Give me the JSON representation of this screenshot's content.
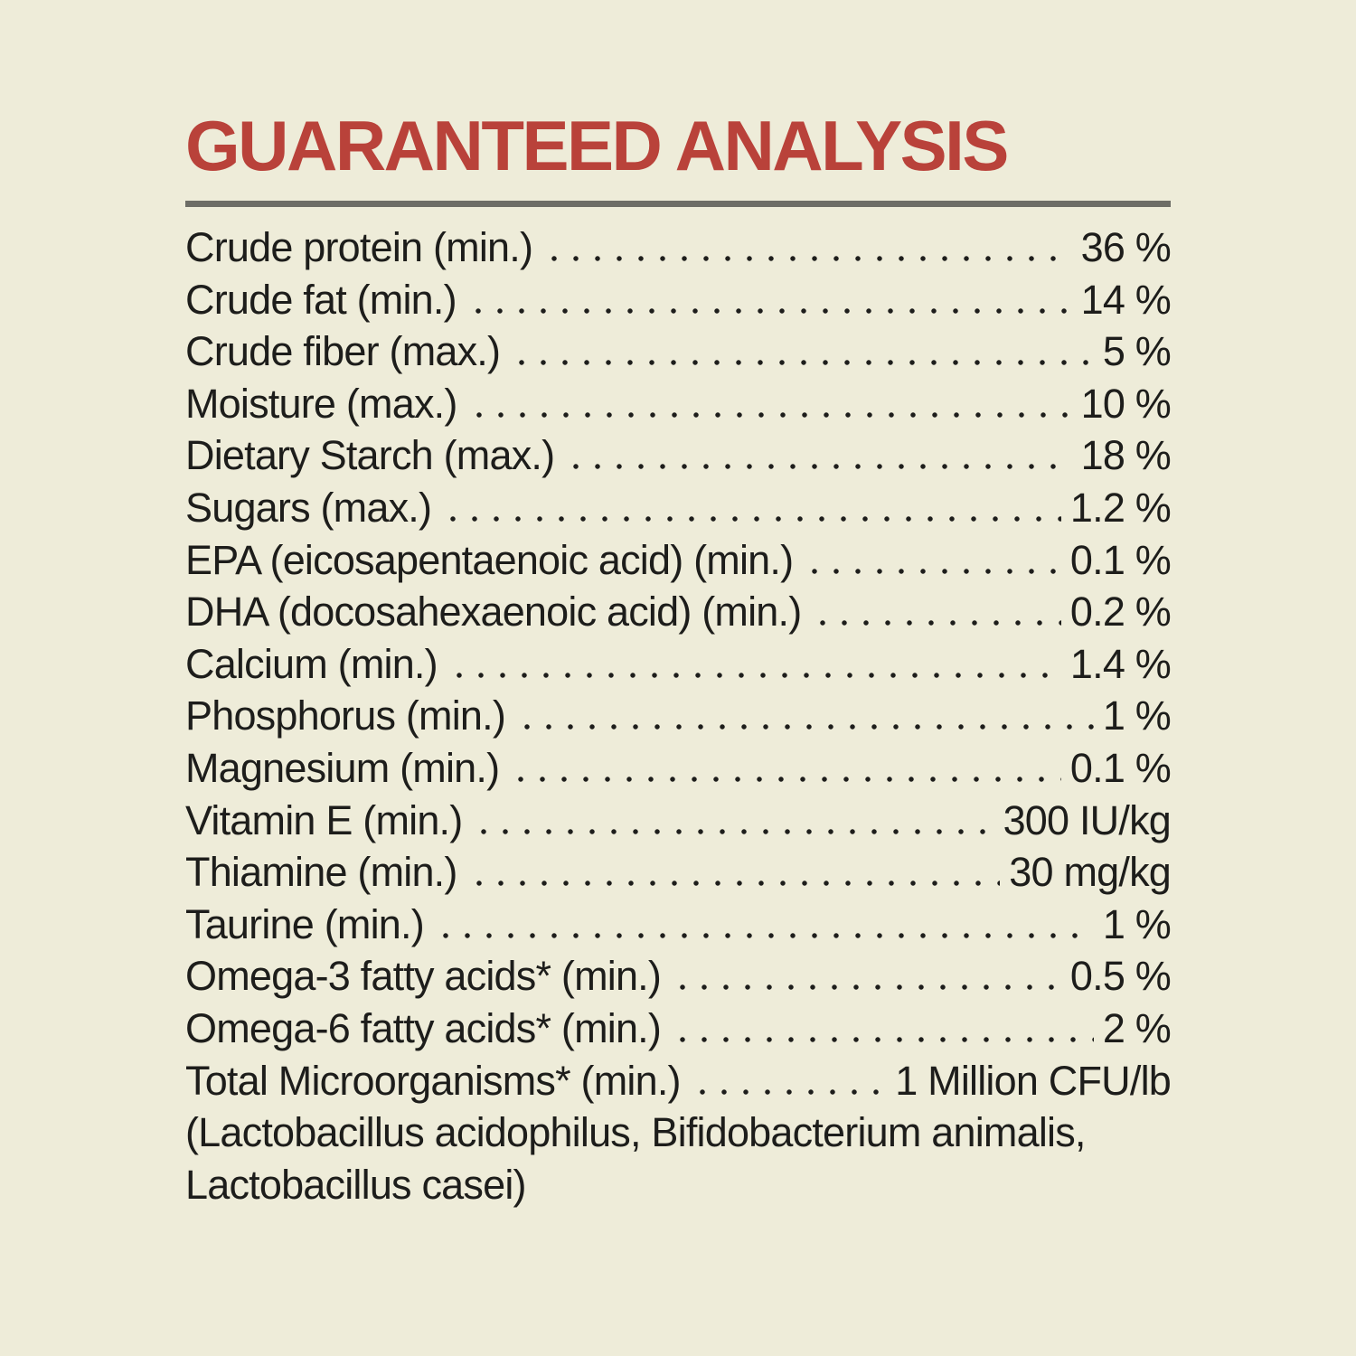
{
  "panel": {
    "title": "GUARANTEED ANALYSIS",
    "rows": [
      {
        "label": "Crude protein (min.)",
        "value": "36 %"
      },
      {
        "label": "Crude fat (min.)",
        "value": "14 %"
      },
      {
        "label": "Crude fiber (max.)",
        "value": "5 %"
      },
      {
        "label": "Moisture (max.)",
        "value": "10 %"
      },
      {
        "label": "Dietary Starch (max.)",
        "value": "18 %"
      },
      {
        "label": "Sugars (max.)",
        "value": "1.2 %"
      },
      {
        "label": "EPA (eicosapentaenoic acid) (min.)",
        "value": "0.1 %"
      },
      {
        "label": "DHA (docosahexaenoic acid) (min.)",
        "value": "0.2 %"
      },
      {
        "label": "Calcium (min.)",
        "value": "1.4 %"
      },
      {
        "label": "Phosphorus (min.)",
        "value": "1 %"
      },
      {
        "label": "Magnesium (min.)",
        "value": "0.1 %"
      },
      {
        "label": "Vitamin E (min.)",
        "value": "300 IU/kg"
      },
      {
        "label": "Thiamine (min.)",
        "value": "30 mg/kg"
      },
      {
        "label": "Taurine (min.)",
        "value": "1 %"
      },
      {
        "label": "Omega-3 fatty acids* (min.)",
        "value": "0.5 %"
      },
      {
        "label": "Omega-6 fatty acids* (min.)",
        "value": "2 %"
      },
      {
        "label": "Total Microorganisms* (min.)",
        "value": "1 Million CFU/lb"
      }
    ],
    "notes": [
      "(Lactobacillus acidophilus, Bifidobacterium animalis,",
      "Lactobacillus casei)"
    ],
    "colors": {
      "background": "#eeecd9",
      "title_red": "#b9423a",
      "rule_gray": "#6d6d66",
      "text": "#1d1d1b"
    }
  }
}
